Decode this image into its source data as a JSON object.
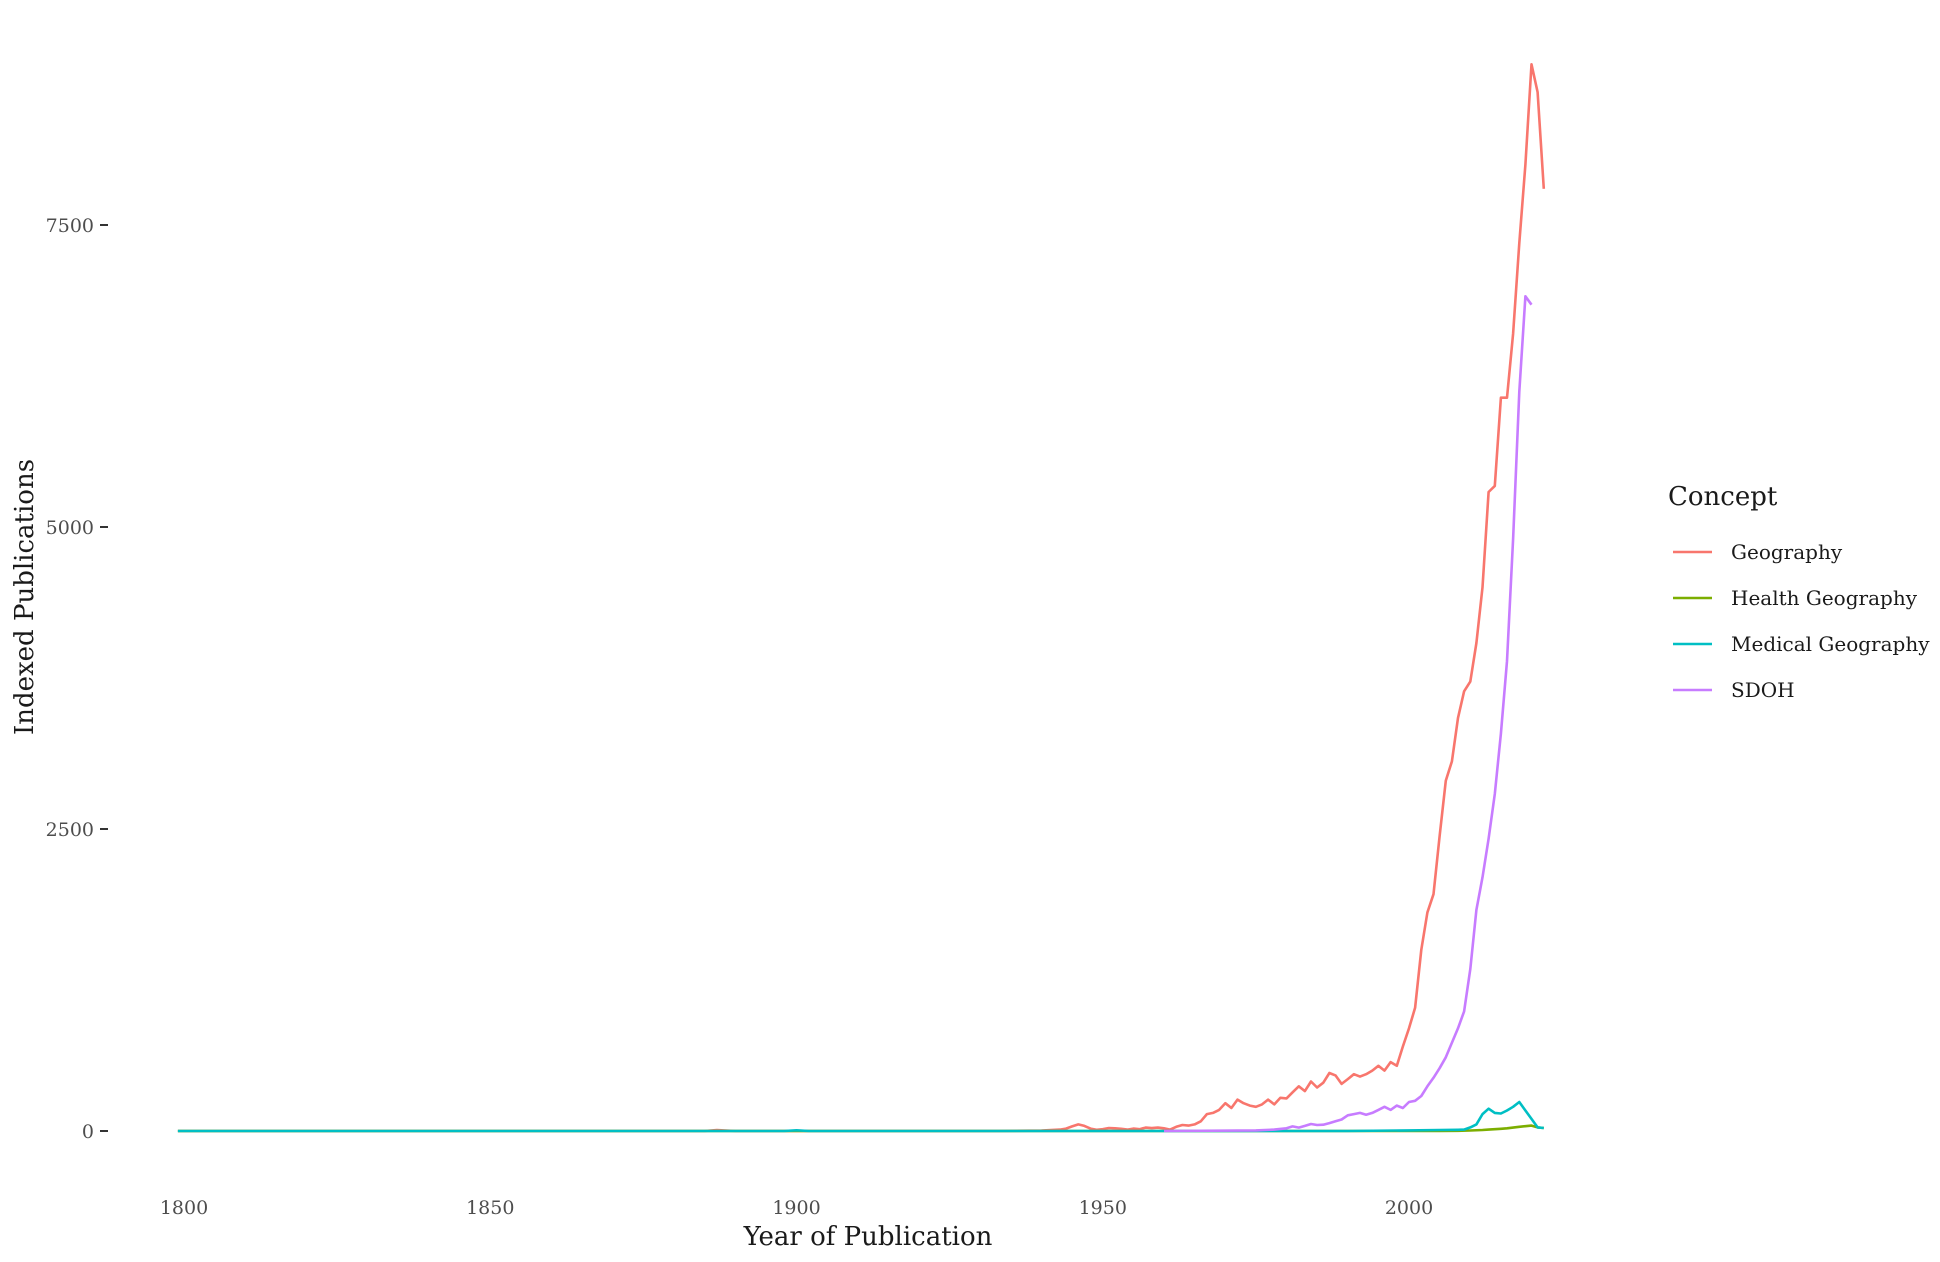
{
  "chart_data": {
    "type": "line",
    "title": "",
    "xlabel": "Year of Publication",
    "ylabel": "Indexed Publications",
    "xlim": [
      1795,
      2026
    ],
    "ylim": [
      -480,
      9000
    ],
    "x_ticks": [
      1800,
      1850,
      1900,
      1950,
      2000
    ],
    "y_ticks": [
      0,
      2500,
      5000,
      7500
    ],
    "grid": false,
    "legend": {
      "title": "Concept",
      "placement": "right"
    },
    "series": [
      {
        "name": "Geography",
        "color": "#F8766D",
        "points": [
          [
            1799,
            0
          ],
          [
            1885,
            0
          ],
          [
            1887,
            8
          ],
          [
            1890,
            0
          ],
          [
            1933,
            0
          ],
          [
            1940,
            3
          ],
          [
            1943,
            12
          ],
          [
            1944,
            20
          ],
          [
            1945,
            38
          ],
          [
            1946,
            55
          ],
          [
            1947,
            42
          ],
          [
            1948,
            20
          ],
          [
            1949,
            10
          ],
          [
            1950,
            15
          ],
          [
            1951,
            25
          ],
          [
            1952,
            22
          ],
          [
            1953,
            18
          ],
          [
            1954,
            12
          ],
          [
            1955,
            20
          ],
          [
            1956,
            15
          ],
          [
            1957,
            28
          ],
          [
            1958,
            24
          ],
          [
            1959,
            28
          ],
          [
            1960,
            22
          ],
          [
            1961,
            12
          ],
          [
            1962,
            35
          ],
          [
            1963,
            50
          ],
          [
            1964,
            45
          ],
          [
            1965,
            55
          ],
          [
            1966,
            80
          ],
          [
            1967,
            140
          ],
          [
            1968,
            150
          ],
          [
            1969,
            175
          ],
          [
            1970,
            230
          ],
          [
            1971,
            190
          ],
          [
            1972,
            260
          ],
          [
            1973,
            230
          ],
          [
            1974,
            210
          ],
          [
            1975,
            200
          ],
          [
            1976,
            220
          ],
          [
            1977,
            260
          ],
          [
            1978,
            220
          ],
          [
            1979,
            275
          ],
          [
            1980,
            270
          ],
          [
            1981,
            320
          ],
          [
            1982,
            370
          ],
          [
            1983,
            330
          ],
          [
            1984,
            410
          ],
          [
            1985,
            360
          ],
          [
            1986,
            400
          ],
          [
            1987,
            480
          ],
          [
            1988,
            460
          ],
          [
            1989,
            390
          ],
          [
            1990,
            430
          ],
          [
            1991,
            470
          ],
          [
            1992,
            450
          ],
          [
            1993,
            470
          ],
          [
            1994,
            500
          ],
          [
            1995,
            540
          ],
          [
            1996,
            500
          ],
          [
            1997,
            570
          ],
          [
            1998,
            540
          ],
          [
            1999,
            700
          ],
          [
            2000,
            850
          ],
          [
            2001,
            1020
          ],
          [
            2002,
            1500
          ],
          [
            2003,
            1810
          ],
          [
            2004,
            1960
          ],
          [
            2005,
            2440
          ],
          [
            2006,
            2900
          ],
          [
            2007,
            3060
          ],
          [
            2008,
            3420
          ],
          [
            2009,
            3640
          ],
          [
            2010,
            3720
          ],
          [
            2011,
            4040
          ],
          [
            2012,
            4500
          ],
          [
            2013,
            5290
          ],
          [
            2014,
            5340
          ],
          [
            2015,
            6070
          ],
          [
            2016,
            6070
          ],
          [
            2017,
            6600
          ],
          [
            2018,
            7350
          ],
          [
            2019,
            8000
          ],
          [
            2020,
            8830
          ],
          [
            2021,
            8600
          ],
          [
            2022,
            7800
          ]
        ]
      },
      {
        "name": "Health Geography",
        "color": "#7CAE00",
        "points": [
          [
            1799,
            0
          ],
          [
            2005,
            0
          ],
          [
            2008,
            2
          ],
          [
            2010,
            4
          ],
          [
            2012,
            8
          ],
          [
            2013,
            12
          ],
          [
            2014,
            15
          ],
          [
            2015,
            18
          ],
          [
            2016,
            22
          ],
          [
            2017,
            28
          ],
          [
            2018,
            35
          ],
          [
            2019,
            40
          ],
          [
            2020,
            45
          ],
          [
            2021,
            30
          ],
          [
            2022,
            25
          ]
        ]
      },
      {
        "name": "Medical Geography",
        "color": "#00BFC4",
        "points": [
          [
            1799,
            0
          ],
          [
            1898,
            0
          ],
          [
            1900,
            6
          ],
          [
            1902,
            0
          ],
          [
            1990,
            0
          ],
          [
            2000,
            5
          ],
          [
            2005,
            8
          ],
          [
            2008,
            10
          ],
          [
            2009,
            12
          ],
          [
            2010,
            30
          ],
          [
            2011,
            55
          ],
          [
            2012,
            140
          ],
          [
            2013,
            185
          ],
          [
            2014,
            150
          ],
          [
            2015,
            145
          ],
          [
            2016,
            170
          ],
          [
            2017,
            200
          ],
          [
            2018,
            240
          ],
          [
            2019,
            170
          ],
          [
            2020,
            100
          ],
          [
            2021,
            30
          ],
          [
            2022,
            25
          ]
        ]
      },
      {
        "name": "SDOH",
        "color": "#C77CFF",
        "points": [
          [
            1960,
            0
          ],
          [
            1975,
            5
          ],
          [
            1978,
            12
          ],
          [
            1980,
            22
          ],
          [
            1981,
            38
          ],
          [
            1982,
            28
          ],
          [
            1983,
            42
          ],
          [
            1984,
            58
          ],
          [
            1985,
            50
          ],
          [
            1986,
            52
          ],
          [
            1987,
            65
          ],
          [
            1988,
            80
          ],
          [
            1989,
            95
          ],
          [
            1990,
            130
          ],
          [
            1991,
            140
          ],
          [
            1992,
            150
          ],
          [
            1993,
            135
          ],
          [
            1994,
            150
          ],
          [
            1995,
            175
          ],
          [
            1996,
            200
          ],
          [
            1997,
            175
          ],
          [
            1998,
            210
          ],
          [
            1999,
            190
          ],
          [
            2000,
            240
          ],
          [
            2001,
            250
          ],
          [
            2002,
            290
          ],
          [
            2003,
            370
          ],
          [
            2004,
            440
          ],
          [
            2005,
            520
          ],
          [
            2006,
            610
          ],
          [
            2007,
            730
          ],
          [
            2008,
            850
          ],
          [
            2009,
            990
          ],
          [
            2010,
            1340
          ],
          [
            2011,
            1830
          ],
          [
            2012,
            2100
          ],
          [
            2013,
            2420
          ],
          [
            2014,
            2790
          ],
          [
            2015,
            3290
          ],
          [
            2016,
            3890
          ],
          [
            2017,
            4900
          ],
          [
            2018,
            6120
          ],
          [
            2019,
            6910
          ],
          [
            2020,
            6840
          ]
        ]
      }
    ]
  }
}
